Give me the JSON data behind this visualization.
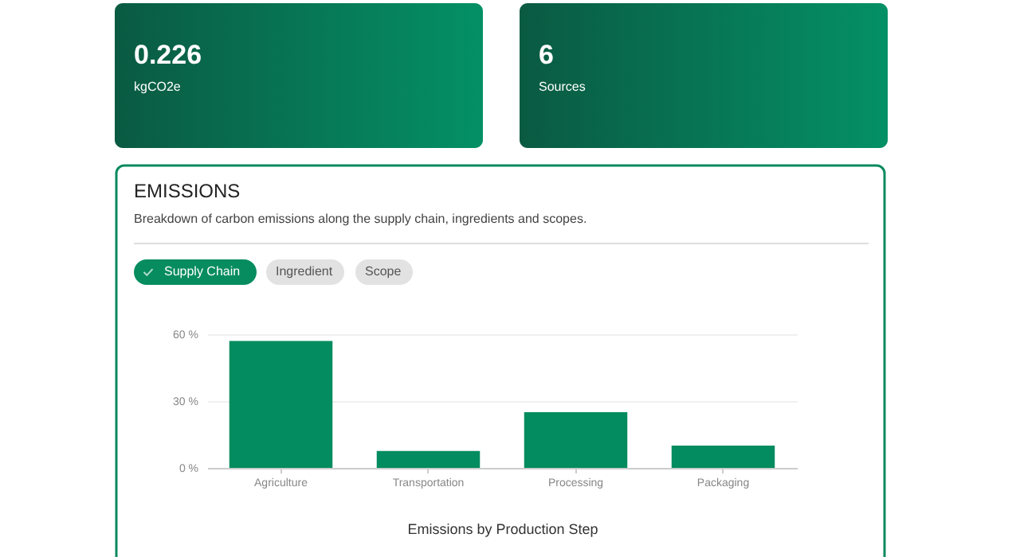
{
  "chart_data": [
    {
      "type": "other",
      "title": "0.226",
      "subtitle": "kgCO2e"
    },
    {
      "type": "other",
      "title": "6",
      "subtitle": "Sources"
    },
    {
      "type": "bar",
      "title": "EMISSIONS",
      "subtitle": "Breakdown of carbon emissions along the supply chain, ingredients and scopes.",
      "annotations": [
        "Supply Chain",
        "Ingredient",
        "Scope"
      ],
      "categories": [
        "Agriculture",
        "Transportation",
        "Processing",
        "Packaging"
      ],
      "values": [
        57,
        7.6,
        25,
        10
      ],
      "color": "#038c5f",
      "xlabel": "Emissions by Production Step",
      "ylim": [
        0,
        60
      ],
      "yticks": [
        {
          "value": 0,
          "label": "0 %"
        },
        {
          "value": 30,
          "label": "30 %"
        },
        {
          "value": 60,
          "label": "60 %"
        }
      ],
      "grid": "y"
    }
  ]
}
